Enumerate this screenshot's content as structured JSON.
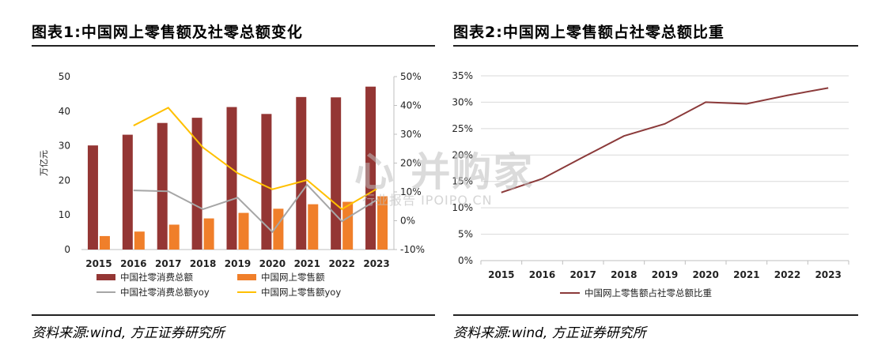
{
  "panel1": {
    "title": "图表1:中国网上零售额及社零总额变化",
    "source": "资料来源:wind, 方正证券研究所"
  },
  "panel2": {
    "title": "图表2:中国网上零售额占社零总额比重",
    "source": "资料来源:wind, 方正证券研究所"
  },
  "watermark": {
    "main": "心 并购家",
    "sub": "行业报告 IPOIPO.CN"
  },
  "colors": {
    "retail_total": "#943634",
    "online_retail": "#f07f2a",
    "retail_total_yoy": "#a6a6a6",
    "online_retail_yoy": "#ffc000",
    "online_share": "#8b3a3a"
  },
  "chart_data": [
    {
      "type": "bar",
      "title": "",
      "categories": [
        "2015",
        "2016",
        "2017",
        "2018",
        "2019",
        "2020",
        "2021",
        "2022",
        "2023"
      ],
      "ylabel": "万亿元",
      "ylim": [
        0,
        50
      ],
      "yticks": [
        "0",
        "10",
        "20",
        "30",
        "40",
        "50"
      ],
      "y2lim": [
        -10,
        50
      ],
      "y2ticks": [
        "-10%",
        "0%",
        "10%",
        "20%",
        "30%",
        "40%",
        "50%"
      ],
      "series": [
        {
          "name": "中国社零消费总额",
          "kind": "bar",
          "axis": "left",
          "values": [
            30.1,
            33.2,
            36.6,
            38.1,
            41.2,
            39.2,
            44.1,
            44.0,
            47.1
          ]
        },
        {
          "name": "中国网上零售额",
          "kind": "bar",
          "axis": "left",
          "values": [
            3.9,
            5.2,
            7.2,
            9.0,
            10.6,
            11.8,
            13.1,
            13.8,
            15.4
          ]
        },
        {
          "name": "中国社零消费总额yoy",
          "kind": "line",
          "axis": "right",
          "values": [
            null,
            10.5,
            10.2,
            4.0,
            8.0,
            -3.9,
            12.5,
            -0.2,
            7.2
          ]
        },
        {
          "name": "中国网上零售额yoy",
          "kind": "line",
          "axis": "right",
          "values": [
            null,
            33.0,
            39.2,
            25.4,
            16.5,
            10.9,
            14.1,
            4.0,
            11.0
          ]
        }
      ],
      "legend_position": "bottom"
    },
    {
      "type": "line",
      "title": "",
      "categories": [
        "2015",
        "2016",
        "2017",
        "2018",
        "2019",
        "2020",
        "2021",
        "2022",
        "2023"
      ],
      "ylim": [
        0,
        35
      ],
      "yticks": [
        "0%",
        "5%",
        "10%",
        "15%",
        "20%",
        "25%",
        "30%",
        "35%"
      ],
      "series": [
        {
          "name": "中国网上零售额占社零总额比重",
          "values": [
            12.9,
            15.5,
            19.6,
            23.6,
            25.9,
            30.0,
            29.7,
            31.3,
            32.7
          ]
        }
      ],
      "legend_position": "bottom"
    }
  ]
}
